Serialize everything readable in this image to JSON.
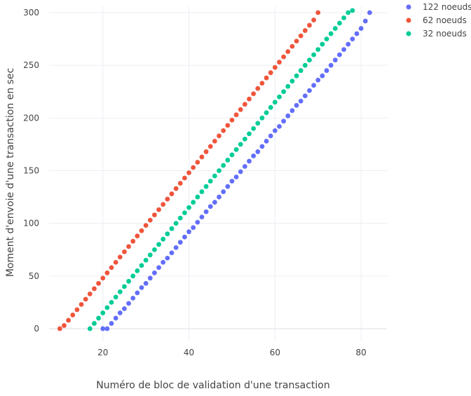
{
  "chart_data": {
    "type": "scatter",
    "title": "",
    "xlabel": "Numéro de bloc de validation d'une transaction",
    "ylabel": "Moment d'envoie d'une transaction en sec",
    "xlim": [
      7.5,
      86
    ],
    "ylim": [
      -12,
      306
    ],
    "x_ticks": [
      20,
      40,
      60,
      80
    ],
    "y_ticks": [
      0,
      50,
      100,
      150,
      200,
      250,
      300
    ],
    "grid": true,
    "legend_position": "top-right",
    "series": [
      {
        "name": "122 noeuds",
        "color": "#636efa",
        "x": [
          20,
          21,
          22,
          23,
          24,
          25,
          26,
          27,
          28,
          29,
          30,
          31,
          32,
          33,
          34,
          35,
          36,
          37,
          38,
          39,
          40,
          41,
          42,
          43,
          44,
          45,
          46,
          47,
          48,
          49,
          50,
          51,
          52,
          53,
          54,
          55,
          56,
          57,
          58,
          59,
          60,
          61,
          62,
          63,
          64,
          65,
          66,
          67,
          68,
          69,
          70,
          71,
          72,
          73,
          74,
          75,
          76,
          77,
          78,
          79,
          80,
          81,
          82
        ],
        "y": [
          0,
          0,
          5,
          10,
          15,
          19,
          24,
          29,
          34,
          39,
          43,
          48,
          53,
          58,
          63,
          67,
          72,
          77,
          82,
          87,
          92,
          96,
          101,
          106,
          111,
          116,
          120,
          125,
          130,
          135,
          140,
          144,
          149,
          154,
          159,
          164,
          168,
          173,
          178,
          183,
          188,
          192,
          197,
          202,
          207,
          212,
          216,
          221,
          226,
          231,
          236,
          240,
          245,
          250,
          255,
          260,
          265,
          270,
          275,
          280,
          285,
          292,
          300
        ]
      },
      {
        "name": "62 noeuds",
        "color": "#ef553b",
        "x": [
          10,
          11,
          12,
          13,
          14,
          15,
          16,
          17,
          18,
          19,
          20,
          21,
          22,
          23,
          24,
          25,
          26,
          27,
          28,
          29,
          30,
          31,
          32,
          33,
          34,
          35,
          36,
          37,
          38,
          39,
          40,
          41,
          42,
          43,
          44,
          45,
          46,
          47,
          48,
          49,
          50,
          51,
          52,
          53,
          54,
          55,
          56,
          57,
          58,
          59,
          60,
          61,
          62,
          63,
          64,
          65,
          66,
          67,
          68,
          69,
          70
        ],
        "y": [
          0,
          3,
          8,
          13,
          18,
          23,
          28,
          33,
          38,
          43,
          48,
          53,
          58,
          63,
          68,
          73,
          78,
          83,
          88,
          93,
          98,
          103,
          108,
          113,
          118,
          123,
          128,
          133,
          138,
          143,
          148,
          153,
          158,
          163,
          168,
          173,
          178,
          183,
          188,
          193,
          198,
          203,
          208,
          213,
          218,
          223,
          228,
          233,
          238,
          243,
          248,
          253,
          258,
          263,
          268,
          273,
          278,
          283,
          288,
          293,
          300
        ]
      },
      {
        "name": "32 noeuds",
        "color": "#00cc96",
        "x": [
          17,
          18,
          19,
          20,
          21,
          22,
          23,
          24,
          25,
          26,
          27,
          28,
          29,
          30,
          31,
          32,
          33,
          34,
          35,
          36,
          37,
          38,
          39,
          40,
          41,
          42,
          43,
          44,
          45,
          46,
          47,
          48,
          49,
          50,
          51,
          52,
          53,
          54,
          55,
          56,
          57,
          58,
          59,
          60,
          61,
          62,
          63,
          64,
          65,
          66,
          67,
          68,
          69,
          70,
          71,
          72,
          73,
          74,
          75,
          76,
          77,
          78
        ],
        "y": [
          0,
          5,
          10,
          15,
          20,
          25,
          30,
          35,
          40,
          45,
          50,
          55,
          60,
          65,
          70,
          75,
          80,
          85,
          90,
          95,
          100,
          105,
          110,
          115,
          120,
          125,
          130,
          135,
          140,
          145,
          150,
          155,
          160,
          165,
          170,
          175,
          180,
          185,
          190,
          195,
          200,
          205,
          210,
          215,
          220,
          225,
          230,
          235,
          240,
          245,
          250,
          255,
          260,
          265,
          270,
          275,
          280,
          285,
          290,
          295,
          300,
          302
        ]
      }
    ]
  }
}
